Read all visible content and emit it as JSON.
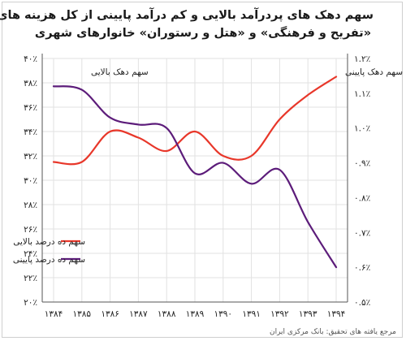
{
  "title": {
    "line1": "سهم دهک های پردرآمد بالایی و کم درآمد پایینی  از کل هزینه های",
    "line2": "«تفریح و فرهنگی» و «هتل و رستوران» خانوارهای شهری"
  },
  "source": "مرجع یافته های تحقیق: بانک مرکزی ایران",
  "chart_data": {
    "type": "line",
    "categories": [
      "۱۳۸۴",
      "۱۳۸۵",
      "۱۳۸۶",
      "۱۳۸۷",
      "۱۳۸۸",
      "۱۳۸۹",
      "۱۳۹۰",
      "۱۳۹۱",
      "۱۳۹۲",
      "۱۳۹۳",
      "۱۳۹۴"
    ],
    "x": [
      1384,
      1385,
      1386,
      1387,
      1388,
      1389,
      1390,
      1391,
      1392,
      1393,
      1394
    ],
    "left_axis": {
      "label": "سهم دهک بالایی",
      "ylim": [
        20,
        40
      ],
      "ticks": [
        20,
        22,
        24,
        26,
        28,
        30,
        32,
        34,
        36,
        38,
        40
      ],
      "tick_labels": [
        "۲۰٪",
        "۲۲٪",
        "۲۴٪",
        "۲۶٪",
        "۲۸٪",
        "۳۰٪",
        "۳۲٪",
        "۳۴٪",
        "۳۶٪",
        "۳۸٪",
        "۴۰٪"
      ]
    },
    "right_axis": {
      "label": "سهم دهک پایینی",
      "ylim": [
        0.5,
        1.2
      ],
      "ticks": [
        0.5,
        0.6,
        0.7,
        0.8,
        0.9,
        1.0,
        1.1,
        1.2
      ],
      "tick_labels": [
        "۰.۵٪",
        "۰.۶٪",
        "۰.۷٪",
        "۰.۸٪",
        "۰.۹٪",
        "۱.۰٪",
        "۱.۱٪",
        "۱.۲٪"
      ]
    },
    "series": [
      {
        "name": "سهم ده درصد بالایی",
        "axis": "left",
        "color": "#e8372a",
        "values": [
          31.5,
          31.5,
          34.0,
          33.5,
          32.4,
          34.0,
          32.0,
          32.0,
          35.0,
          37.0,
          38.5
        ]
      },
      {
        "name": "سهم ده درصد پایینی",
        "axis": "right",
        "color": "#5c1c7a",
        "values": [
          1.12,
          1.11,
          1.03,
          1.01,
          1.0,
          0.87,
          0.9,
          0.84,
          0.88,
          0.73,
          0.6
        ]
      }
    ],
    "grid": true,
    "legend_position": "bottom-left"
  }
}
